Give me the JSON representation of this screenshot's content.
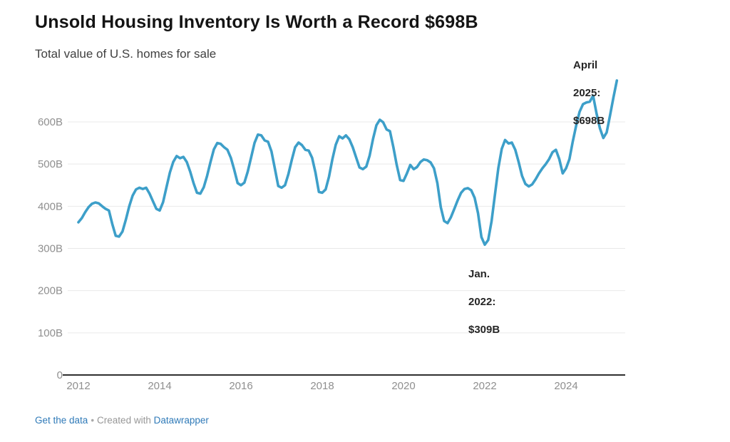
{
  "header": {
    "title": "Unsold Housing Inventory Is Worth a Record $698B",
    "subtitle": "Total value of U.S. homes for sale"
  },
  "callouts": {
    "apr2025": {
      "l1": "April",
      "l2": "2025:",
      "l3": "$698B"
    },
    "jan2022": {
      "l1": "Jan.",
      "l2": "2022:",
      "l3": "$309B"
    }
  },
  "footer": {
    "link_data": "Get the data",
    "separator": "•",
    "credit": "Created with",
    "link_tool": "Datawrapper"
  },
  "chart_data": {
    "type": "line",
    "title": "Unsold Housing Inventory Is Worth a Record $698B",
    "subtitle": "Total value of U.S. homes for sale",
    "unit": "billions of USD",
    "frequency": "monthly",
    "x_start": "2012-01",
    "x_end": "2025-04",
    "x_tick_labels": [
      "2012",
      "2014",
      "2016",
      "2018",
      "2020",
      "2022",
      "2024"
    ],
    "y_tick_labels": [
      "0",
      "100B",
      "200B",
      "300B",
      "400B",
      "500B",
      "600B"
    ],
    "y_tick_values": [
      0,
      100,
      200,
      300,
      400,
      500,
      600
    ],
    "ylim": [
      0,
      700
    ],
    "grid": "horizontal-only",
    "legend": "none",
    "line_color": "#3d9fc9",
    "values": [
      362,
      372,
      386,
      398,
      406,
      409,
      407,
      400,
      394,
      390,
      358,
      330,
      328,
      340,
      368,
      400,
      425,
      440,
      444,
      441,
      444,
      430,
      412,
      394,
      390,
      410,
      445,
      480,
      505,
      519,
      514,
      517,
      505,
      482,
      455,
      432,
      430,
      445,
      472,
      505,
      535,
      550,
      548,
      540,
      534,
      515,
      487,
      455,
      450,
      456,
      482,
      516,
      550,
      570,
      568,
      556,
      553,
      530,
      490,
      448,
      444,
      450,
      476,
      510,
      540,
      551,
      545,
      534,
      532,
      515,
      480,
      434,
      432,
      440,
      470,
      512,
      546,
      566,
      561,
      568,
      559,
      540,
      516,
      492,
      488,
      494,
      520,
      560,
      592,
      605,
      599,
      582,
      578,
      540,
      498,
      462,
      460,
      478,
      498,
      488,
      493,
      505,
      511,
      509,
      504,
      490,
      455,
      398,
      365,
      360,
      374,
      394,
      414,
      432,
      441,
      443,
      438,
      420,
      384,
      327,
      309,
      320,
      364,
      428,
      490,
      536,
      557,
      549,
      551,
      534,
      505,
      472,
      453,
      447,
      452,
      464,
      478,
      490,
      500,
      512,
      528,
      534,
      512,
      478,
      490,
      512,
      554,
      592,
      624,
      642,
      646,
      648,
      662,
      620,
      585,
      562,
      575,
      616,
      658,
      698
    ],
    "annotations": [
      {
        "label": "Jan. 2022: $309B",
        "x": "2022-01",
        "value": 309
      },
      {
        "label": "April 2025: $698B",
        "x": "2025-04",
        "value": 698
      }
    ]
  }
}
